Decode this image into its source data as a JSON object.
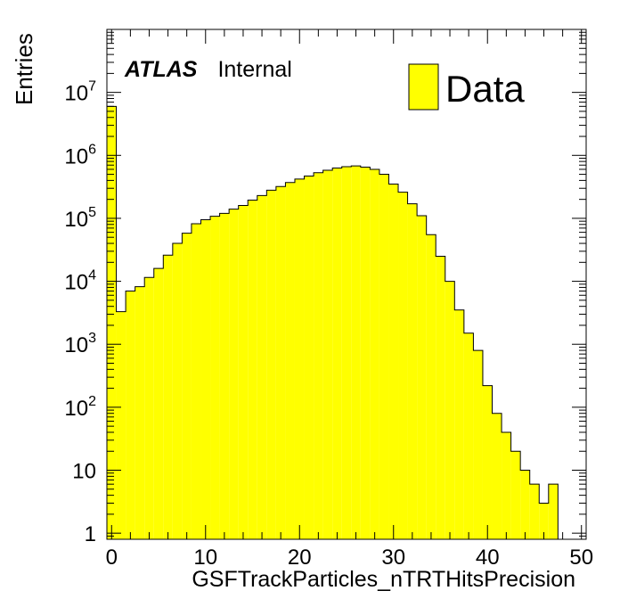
{
  "chart_data": {
    "type": "bar",
    "title": "",
    "xlabel": "GSFTrackParticles_nTRTHitsPrecision",
    "ylabel": "Entries",
    "xlim": [
      -0.5,
      50.5
    ],
    "ylim": [
      0.8,
      100000000
    ],
    "yscale": "log",
    "grid": false,
    "legend_position": "top-right",
    "x_ticks": [
      0,
      10,
      20,
      30,
      40,
      50
    ],
    "y_ticks": [
      {
        "value": 1,
        "base": "1",
        "exp": ""
      },
      {
        "value": 10,
        "base": "10",
        "exp": ""
      },
      {
        "value": 100,
        "base": "10",
        "exp": "2"
      },
      {
        "value": 1000,
        "base": "10",
        "exp": "3"
      },
      {
        "value": 10000,
        "base": "10",
        "exp": "4"
      },
      {
        "value": 100000,
        "base": "10",
        "exp": "5"
      },
      {
        "value": 1000000,
        "base": "10",
        "exp": "6"
      },
      {
        "value": 10000000,
        "base": "10",
        "exp": "7"
      }
    ],
    "atlas_label": "ATLAS",
    "atlas_sublabel": "Internal",
    "fill_color": "#ffff00",
    "series": [
      {
        "name": "Data",
        "bins": [
          0,
          1,
          2,
          3,
          4,
          5,
          6,
          7,
          8,
          9,
          10,
          11,
          12,
          13,
          14,
          15,
          16,
          17,
          18,
          19,
          20,
          21,
          22,
          23,
          24,
          25,
          26,
          27,
          28,
          29,
          30,
          31,
          32,
          33,
          34,
          35,
          36,
          37,
          38,
          39,
          40,
          41,
          42,
          43,
          44,
          45,
          46,
          47,
          48,
          49,
          50
        ],
        "values": [
          6000000,
          3300,
          7000,
          8200,
          11500,
          16000,
          26000,
          40000,
          58000,
          82000,
          95000,
          108000,
          120000,
          140000,
          160000,
          195000,
          230000,
          280000,
          320000,
          370000,
          420000,
          470000,
          530000,
          580000,
          630000,
          660000,
          680000,
          650000,
          600000,
          500000,
          350000,
          260000,
          170000,
          110000,
          55000,
          25000,
          10000,
          3500,
          1500,
          800,
          220,
          80,
          40,
          20,
          10,
          6,
          3,
          6,
          0,
          0,
          0
        ]
      }
    ]
  }
}
